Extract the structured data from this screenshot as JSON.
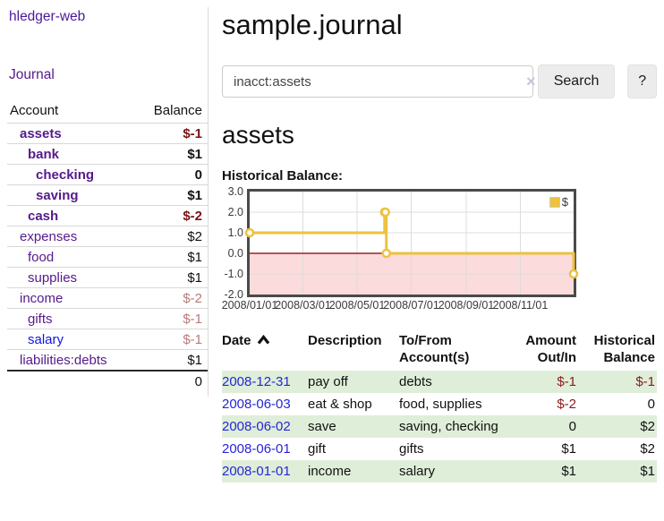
{
  "app": {
    "title": "hledger-web",
    "nav_journal": "Journal"
  },
  "sidebar": {
    "header": {
      "account": "Account",
      "balance": "Balance"
    },
    "accounts": [
      {
        "name": "assets",
        "balance": "$-1",
        "level": 0
      },
      {
        "name": "bank",
        "balance": "$1",
        "level": 1
      },
      {
        "name": "checking",
        "balance": "0",
        "level": 2
      },
      {
        "name": "saving",
        "balance": "$1",
        "level": 2
      },
      {
        "name": "cash",
        "balance": "$-2",
        "level": 1
      },
      {
        "name": "expenses",
        "balance": "$2",
        "level": 0
      },
      {
        "name": "food",
        "balance": "$1",
        "level": 1
      },
      {
        "name": "supplies",
        "balance": "$1",
        "level": 1
      },
      {
        "name": "income",
        "balance": "$-2",
        "level": 0
      },
      {
        "name": "gifts",
        "balance": "$-1",
        "level": 1
      },
      {
        "name": "salary",
        "balance": "$-1",
        "level": 1
      },
      {
        "name": "liabilities:debts",
        "balance": "$1",
        "level": 0
      }
    ],
    "total": "0"
  },
  "header": {
    "title": "sample.journal"
  },
  "search": {
    "value": "inacct:assets",
    "clear_label": "×",
    "button_label": "Search",
    "help_label": "?"
  },
  "account_page": {
    "title": "assets",
    "chart_caption": "Historical Balance:"
  },
  "chart_data": {
    "type": "line",
    "step": true,
    "title": "Historical Balance",
    "series": [
      {
        "name": "$",
        "color": "#edc240",
        "points": [
          [
            "2008-01-01",
            1
          ],
          [
            "2008-06-01",
            2
          ],
          [
            "2008-06-02",
            2
          ],
          [
            "2008-06-03",
            0
          ],
          [
            "2008-12-31",
            -1
          ]
        ]
      }
    ],
    "xrange": [
      "2008-01-01",
      "2008-12-31"
    ],
    "ylim": [
      -2,
      3
    ],
    "yticks": [
      {
        "label": "3.0",
        "value": 3
      },
      {
        "label": "2.0",
        "value": 2
      },
      {
        "label": "1.0",
        "value": 1
      },
      {
        "label": "0.0",
        "value": 0
      },
      {
        "label": "-1.0",
        "value": -1
      },
      {
        "label": "-2.0",
        "value": -2
      }
    ],
    "xticks": [
      {
        "label": "2008/01/01",
        "date": "2008-01-01"
      },
      {
        "label": "2008/03/01",
        "date": "2008-03-01"
      },
      {
        "label": "2008/05/01",
        "date": "2008-05-01"
      },
      {
        "label": "2008/07/01",
        "date": "2008-07-01"
      },
      {
        "label": "2008/09/01",
        "date": "2008-09-01"
      },
      {
        "label": "2008/11/01",
        "date": "2008-11-01"
      }
    ],
    "grid": true,
    "legend_position": "top-right",
    "marker": "open-circle",
    "negative_region_color": "#fbdbdb",
    "zero_line_color": "#9c2222",
    "gridline_color": "#dcdcdc"
  },
  "register": {
    "columns": {
      "date": "Date",
      "description": "Description",
      "accounts": "To/From Account(s)",
      "amount": "Amount Out/In",
      "balance": "Historical Balance"
    },
    "rows": [
      {
        "date": "2008-12-31",
        "description": "pay off",
        "accounts": "debts",
        "amount": "$-1",
        "balance": "$-1"
      },
      {
        "date": "2008-06-03",
        "description": "eat & shop",
        "accounts": "food, supplies",
        "amount": "$-2",
        "balance": "0"
      },
      {
        "date": "2008-06-02",
        "description": "save",
        "accounts": "saving, checking",
        "amount": "0",
        "balance": "$2"
      },
      {
        "date": "2008-06-01",
        "description": "gift",
        "accounts": "gifts",
        "amount": "$1",
        "balance": "$2"
      },
      {
        "date": "2008-01-01",
        "description": "income",
        "accounts": "salary",
        "amount": "$1",
        "balance": "$1"
      }
    ]
  },
  "colors": {
    "link_purple": "#551a8b",
    "link_blue": "#1414e0",
    "date_link_blue": "#2626d8",
    "negative_strong": "#7c1113",
    "negative_dim": "#b97a7a",
    "register_negative": "#8b1a1a",
    "stripe_green": "#dfeed9",
    "chart_series_yellow": "#edc240"
  }
}
